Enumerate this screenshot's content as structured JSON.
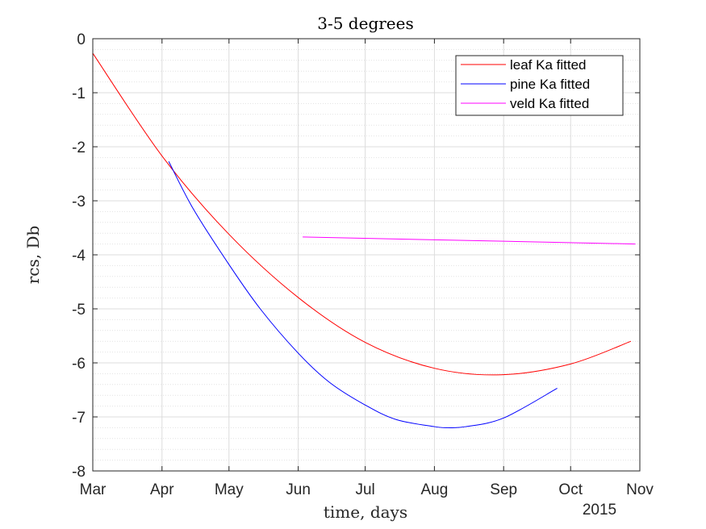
{
  "chart_data": {
    "type": "line",
    "title": "3-5 degrees",
    "xlabel": "time, days",
    "ylabel": "rcs, Db",
    "x_year_label": "2015",
    "x_ticks": [
      "Mar",
      "Apr",
      "May",
      "Jun",
      "Jul",
      "Aug",
      "Sep",
      "Oct",
      "Nov"
    ],
    "x_tick_dates": [
      "2015-03-01",
      "2015-04-01",
      "2015-05-01",
      "2015-06-01",
      "2015-07-01",
      "2015-08-01",
      "2015-09-01",
      "2015-10-01",
      "2015-11-01"
    ],
    "xlim": [
      "2015-03-01",
      "2015-11-01"
    ],
    "y_ticks": [
      "0",
      "-1",
      "-2",
      "-3",
      "-4",
      "-5",
      "-6",
      "-7",
      "-8"
    ],
    "ylim": [
      -8,
      0
    ],
    "grid": true,
    "minor_grid": true,
    "legend_position": "top-right",
    "series": [
      {
        "name": "leaf Ka fitted",
        "color": "#ff0000",
        "x": [
          "2015-03-01",
          "2015-04-01",
          "2015-05-01",
          "2015-06-01",
          "2015-07-01",
          "2015-08-01",
          "2015-08-31",
          "2015-10-01",
          "2015-10-28"
        ],
        "y": [
          -0.27,
          -2.17,
          -3.62,
          -4.79,
          -5.62,
          -6.1,
          -6.22,
          -6.02,
          -5.6
        ]
      },
      {
        "name": "pine Ka fitted",
        "color": "#0000ff",
        "x": [
          "2015-04-04",
          "2015-04-15",
          "2015-05-01",
          "2015-05-15",
          "2015-06-01",
          "2015-06-15",
          "2015-07-01",
          "2015-07-15",
          "2015-08-01",
          "2015-08-07",
          "2015-08-15",
          "2015-09-01",
          "2015-09-25"
        ],
        "y": [
          -2.27,
          -3.15,
          -4.18,
          -5.0,
          -5.82,
          -6.36,
          -6.78,
          -7.05,
          -7.18,
          -7.2,
          -7.18,
          -7.02,
          -6.47
        ]
      },
      {
        "name": "veld Ka fitted",
        "color": "#ff00ff",
        "x": [
          "2015-06-03",
          "2015-10-30"
        ],
        "y": [
          -3.67,
          -3.8
        ]
      }
    ]
  }
}
